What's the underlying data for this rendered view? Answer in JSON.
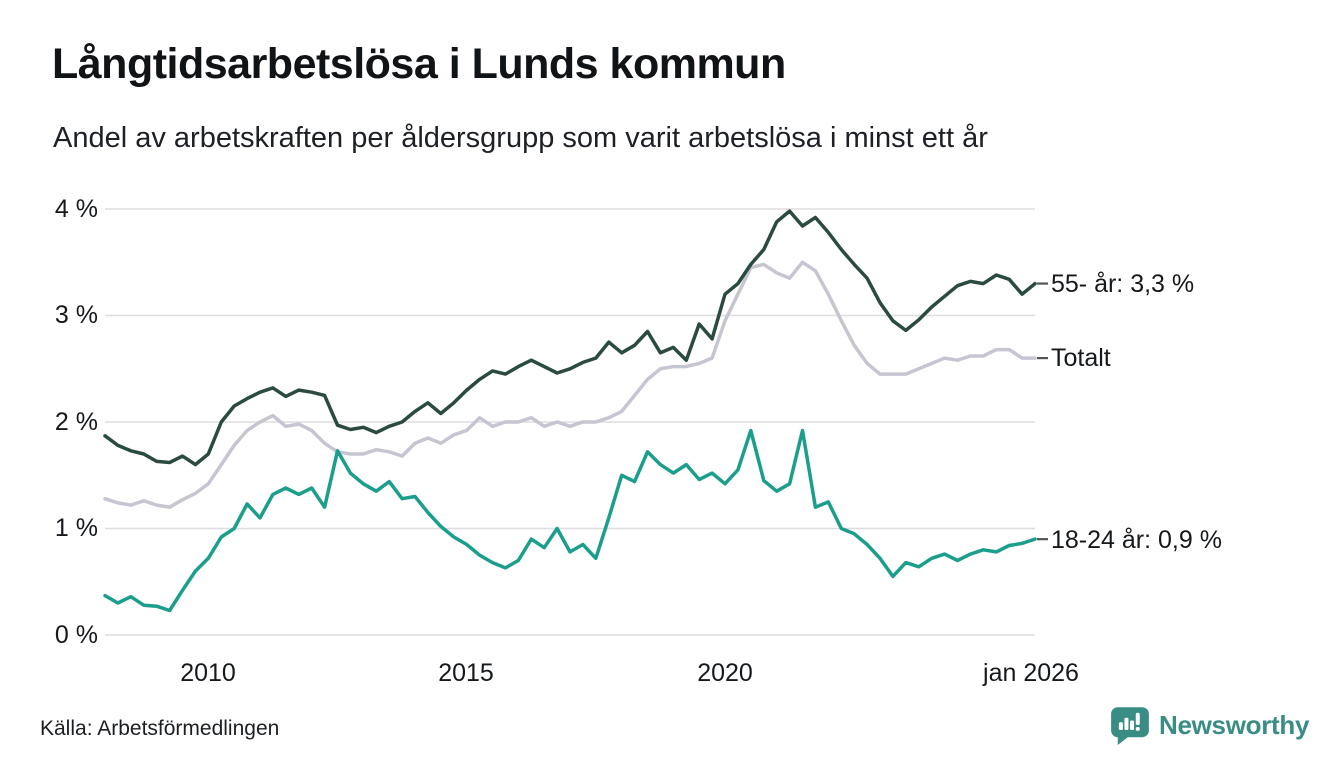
{
  "header": {
    "title": "Långtidsarbetslösa i Lunds kommun",
    "subtitle": "Andel av arbetskraften per åldersgrupp som varit arbetslösa i minst ett år"
  },
  "footer": {
    "source": "Källa: Arbetsförmedlingen",
    "brand": "Newsworthy"
  },
  "colors": {
    "series_55": "#2b4b40",
    "series_total": "#c6c5d2",
    "series_1824": "#1b9e8c",
    "grid": "#dddde1",
    "leader_dash": "#555555",
    "text": "#16191c",
    "brand_teal": "#3a8d84"
  },
  "chart_data": {
    "type": "line",
    "title": "Långtidsarbetslösa i Lunds kommun",
    "subtitle": "Andel av arbetskraften per åldersgrupp som varit arbetslösa i minst ett år",
    "source": "Källa: Arbetsförmedlingen",
    "grid": "horizontal",
    "legend_position": "end-of-line-labels-right",
    "xlim": [
      2008.0,
      2026.0
    ],
    "ylim": [
      0,
      4
    ],
    "x_unit": "year (monthly series shown, sampled quarterly)",
    "x_start": 2008.0,
    "x_step": 0.25,
    "x_end": 2026.0,
    "yticks": [
      {
        "value": 0,
        "label": "0 %"
      },
      {
        "value": 1,
        "label": "1 %"
      },
      {
        "value": 2,
        "label": "2 %"
      },
      {
        "value": 3,
        "label": "3 %"
      },
      {
        "value": 4,
        "label": "4 %"
      }
    ],
    "xticks": [
      {
        "value": 2010,
        "label": "2010"
      },
      {
        "value": 2015,
        "label": "2015"
      },
      {
        "value": 2020,
        "label": "2020"
      },
      {
        "value": 2026,
        "label": "jan 2026"
      }
    ],
    "series": [
      {
        "id": "total",
        "name": "Totalt",
        "end_label": "Totalt",
        "end_value": 2.6,
        "color": "#c6c5d2",
        "values": [
          1.28,
          1.24,
          1.22,
          1.26,
          1.22,
          1.2,
          1.27,
          1.33,
          1.42,
          1.6,
          1.78,
          1.92,
          2.0,
          2.06,
          1.96,
          1.98,
          1.92,
          1.8,
          1.72,
          1.7,
          1.7,
          1.74,
          1.72,
          1.68,
          1.8,
          1.85,
          1.8,
          1.88,
          1.92,
          2.04,
          1.96,
          2.0,
          2.0,
          2.04,
          1.96,
          2.0,
          1.96,
          2.0,
          2.0,
          2.04,
          2.1,
          2.25,
          2.4,
          2.5,
          2.52,
          2.52,
          2.55,
          2.6,
          2.95,
          3.2,
          3.45,
          3.48,
          3.4,
          3.35,
          3.5,
          3.42,
          3.2,
          2.95,
          2.72,
          2.55,
          2.45,
          2.45,
          2.45,
          2.5,
          2.55,
          2.6,
          2.58,
          2.62,
          2.62,
          2.68,
          2.68,
          2.6,
          2.6
        ]
      },
      {
        "id": "age1824",
        "name": "18-24 år",
        "end_label": "18-24 år: 0,9 %",
        "end_value": 0.9,
        "color": "#1b9e8c",
        "values": [
          0.37,
          0.3,
          0.36,
          0.28,
          0.27,
          0.23,
          0.42,
          0.6,
          0.72,
          0.92,
          1.0,
          1.23,
          1.1,
          1.32,
          1.38,
          1.32,
          1.38,
          1.2,
          1.73,
          1.52,
          1.42,
          1.35,
          1.44,
          1.28,
          1.3,
          1.15,
          1.02,
          0.92,
          0.85,
          0.75,
          0.68,
          0.63,
          0.7,
          0.9,
          0.82,
          1.0,
          0.78,
          0.85,
          0.72,
          1.1,
          1.5,
          1.44,
          1.72,
          1.6,
          1.52,
          1.6,
          1.46,
          1.52,
          1.42,
          1.55,
          1.92,
          1.45,
          1.35,
          1.42,
          1.92,
          1.2,
          1.25,
          1.0,
          0.95,
          0.85,
          0.72,
          0.55,
          0.68,
          0.64,
          0.72,
          0.76,
          0.7,
          0.76,
          0.8,
          0.78,
          0.84,
          0.86,
          0.9
        ]
      },
      {
        "id": "age55",
        "name": "55- år",
        "end_label": "55- år: 3,3 %",
        "end_value": 3.3,
        "color": "#2b4b40",
        "values": [
          1.87,
          1.78,
          1.73,
          1.7,
          1.63,
          1.62,
          1.68,
          1.6,
          1.7,
          2.0,
          2.15,
          2.22,
          2.28,
          2.32,
          2.24,
          2.3,
          2.28,
          2.25,
          1.97,
          1.93,
          1.95,
          1.9,
          1.96,
          2.0,
          2.1,
          2.18,
          2.08,
          2.18,
          2.3,
          2.4,
          2.48,
          2.45,
          2.52,
          2.58,
          2.52,
          2.46,
          2.5,
          2.56,
          2.6,
          2.75,
          2.65,
          2.72,
          2.85,
          2.65,
          2.7,
          2.58,
          2.92,
          2.78,
          3.2,
          3.3,
          3.48,
          3.62,
          3.88,
          3.98,
          3.84,
          3.92,
          3.78,
          3.62,
          3.48,
          3.35,
          3.12,
          2.95,
          2.86,
          2.96,
          3.08,
          3.18,
          3.28,
          3.32,
          3.3,
          3.38,
          3.34,
          3.2,
          3.3
        ]
      }
    ]
  }
}
